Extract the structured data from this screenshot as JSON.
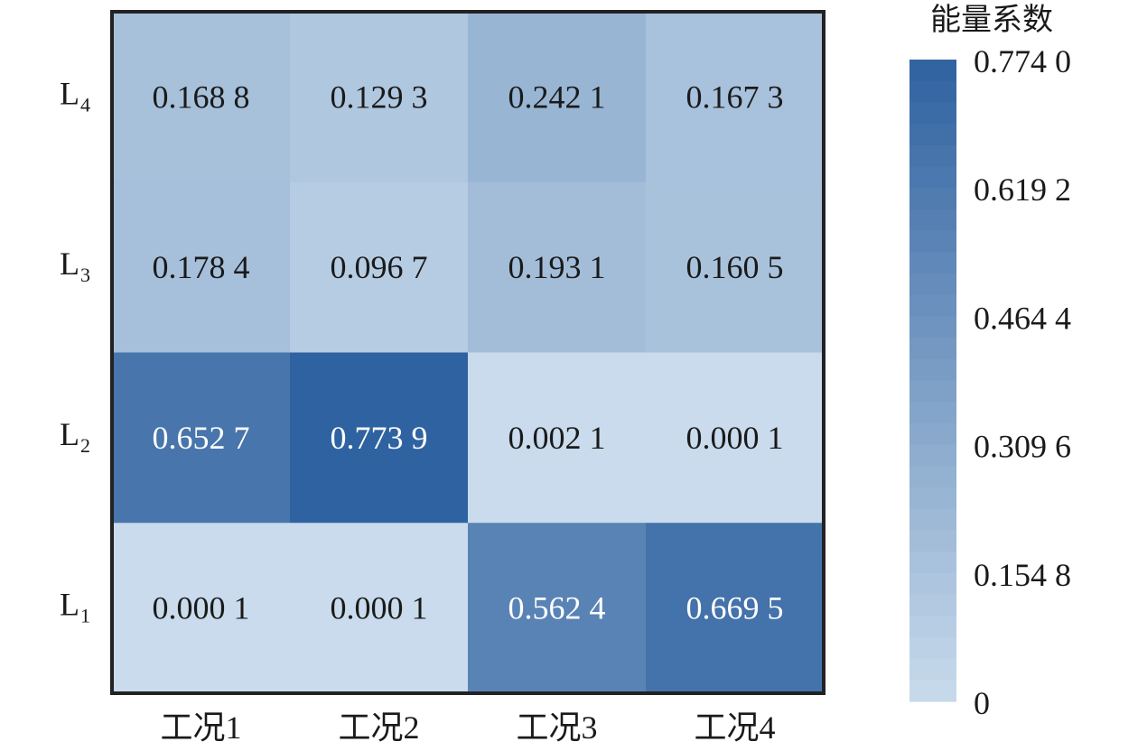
{
  "chart_data": {
    "type": "heatmap",
    "x_categories": [
      "工况1",
      "工况2",
      "工况3",
      "工况4"
    ],
    "y_categories": [
      {
        "base": "L",
        "sub": "4"
      },
      {
        "base": "L",
        "sub": "3"
      },
      {
        "base": "L",
        "sub": "2"
      },
      {
        "base": "L",
        "sub": "1"
      }
    ],
    "values": [
      [
        0.1688,
        0.1293,
        0.2421,
        0.1673
      ],
      [
        0.1784,
        0.0967,
        0.1931,
        0.1605
      ],
      [
        0.6527,
        0.7739,
        0.0021,
        0.0001
      ],
      [
        0.0001,
        0.0001,
        0.5624,
        0.6695
      ]
    ],
    "value_labels": [
      [
        "0.168 8",
        "0.129 3",
        "0.242 1",
        "0.167 3"
      ],
      [
        "0.178 4",
        "0.096 7",
        "0.193 1",
        "0.160 5"
      ],
      [
        "0.652 7",
        "0.773 9",
        "0.002 1",
        "0.000 1"
      ],
      [
        "0.000 1",
        "0.000 1",
        "0.562 4",
        "0.669 5"
      ]
    ],
    "colorbar": {
      "title": "能量系数",
      "min": 0,
      "max": 0.774,
      "tick_values": [
        0.774,
        0.6192,
        0.4644,
        0.3096,
        0.1548,
        0
      ],
      "tick_labels": [
        "0.774 0",
        "0.619 2",
        "0.464 4",
        "0.309 6",
        "0.154 8",
        "0"
      ],
      "low_color": "#c9dbec",
      "high_color": "#2f62a0"
    },
    "light_text_threshold": 0.5,
    "light_text_color": "#ffffff",
    "dark_text_color": "#1a1a1a"
  }
}
